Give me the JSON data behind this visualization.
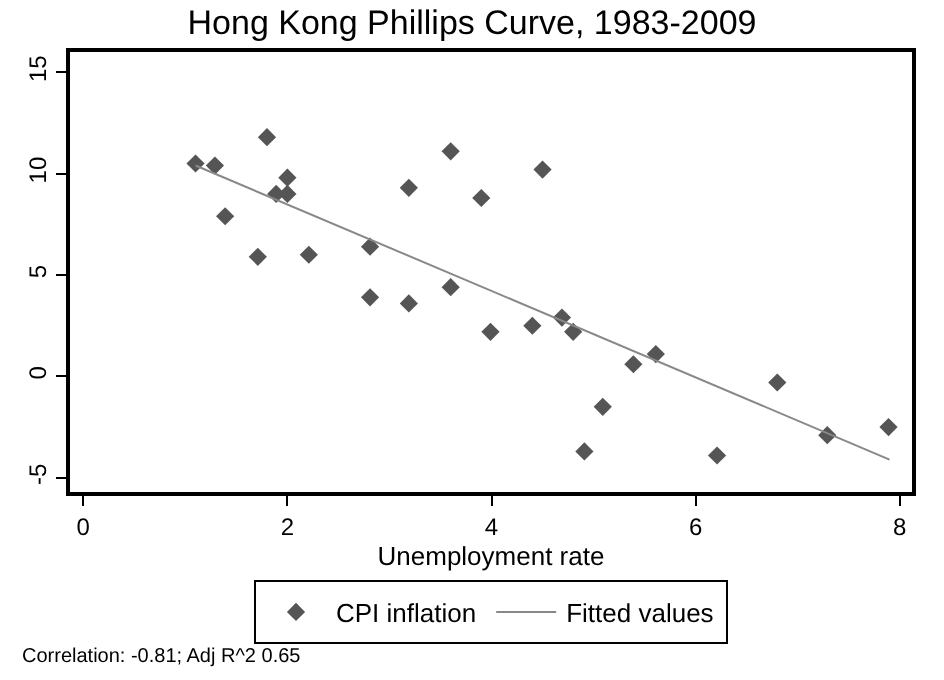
{
  "chart_data": {
    "type": "scatter",
    "title": "Hong Kong Phillips Curve, 1983-2009",
    "xlabel": "Unemployment rate",
    "xlim": [
      -0.13,
      8.12
    ],
    "xticks": [
      0,
      2,
      4,
      6,
      8
    ],
    "ylim": [
      -5.7,
      16
    ],
    "yticks": [
      -5,
      0,
      5,
      10,
      15
    ],
    "legend": "bottom",
    "series": [
      {
        "name": "CPI inflation",
        "color": "#555555",
        "marker": "diamond",
        "x": [
          1.1,
          1.29,
          1.39,
          1.71,
          1.8,
          1.89,
          2.0,
          2.0,
          2.21,
          2.81,
          2.81,
          3.19,
          3.19,
          3.6,
          3.6,
          3.9,
          3.99,
          4.5,
          4.4,
          4.69,
          4.8,
          4.91,
          5.09,
          5.39,
          5.61,
          6.21,
          6.8,
          7.29,
          7.89
        ],
        "values": [
          10.5,
          10.4,
          7.9,
          5.9,
          11.8,
          9.0,
          9.8,
          9.0,
          6.0,
          6.4,
          3.9,
          9.3,
          3.6,
          11.1,
          4.4,
          8.8,
          2.2,
          10.2,
          2.5,
          2.9,
          2.2,
          -3.7,
          -1.5,
          0.6,
          1.1,
          -3.9,
          -0.3,
          -2.9,
          -2.5
        ]
      },
      {
        "name": "Fitted values",
        "type": "line",
        "color": "#888888",
        "line_style": "solid",
        "x": [
          1.1,
          7.9
        ],
        "values": [
          10.4,
          -4.1
        ]
      }
    ],
    "annotations": [
      "Correlation: -0.81; Adj R^2 0.65"
    ]
  }
}
